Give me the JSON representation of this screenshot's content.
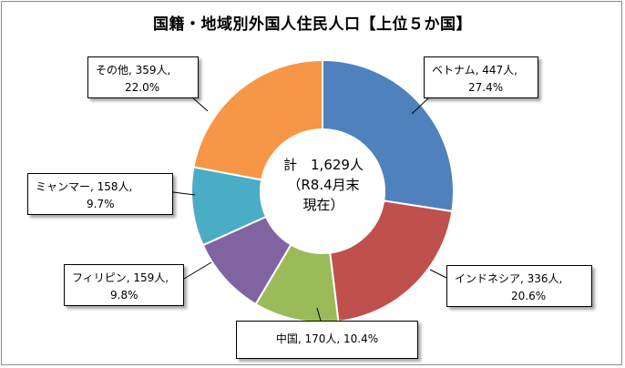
{
  "chart_data": {
    "type": "pie",
    "title": "国籍・地域別外国人住民人口【上位５か国】",
    "center_label": {
      "line1": "計　1,629人",
      "line2": "（R8.4月末",
      "line3": "現在）"
    },
    "slices": [
      {
        "name": "ベトナム",
        "value": 447,
        "percent": 27.4,
        "color": "#4f81bd",
        "label_line1": "ベトナム, 447人,",
        "label_line2": "27.4%"
      },
      {
        "name": "インドネシア",
        "value": 336,
        "percent": 20.6,
        "color": "#c0504d",
        "label_line1": "インドネシア, 336人,",
        "label_line2": "20.6%"
      },
      {
        "name": "中国",
        "value": 170,
        "percent": 10.4,
        "color": "#9bbb59",
        "label_line1": "中国, 170人, 10.4%",
        "label_line2": ""
      },
      {
        "name": "フィリピン",
        "value": 159,
        "percent": 9.8,
        "color": "#8064a2",
        "label_line1": "フィリピン, 159人,",
        "label_line2": "9.8%"
      },
      {
        "name": "ミャンマー",
        "value": 158,
        "percent": 9.7,
        "color": "#4bacc6",
        "label_line1": "ミャンマー, 158人,",
        "label_line2": "9.7%"
      },
      {
        "name": "その他",
        "value": 359,
        "percent": 22.0,
        "color": "#f79646",
        "label_line1": "その他, 359人,",
        "label_line2": "22.0%"
      }
    ]
  }
}
